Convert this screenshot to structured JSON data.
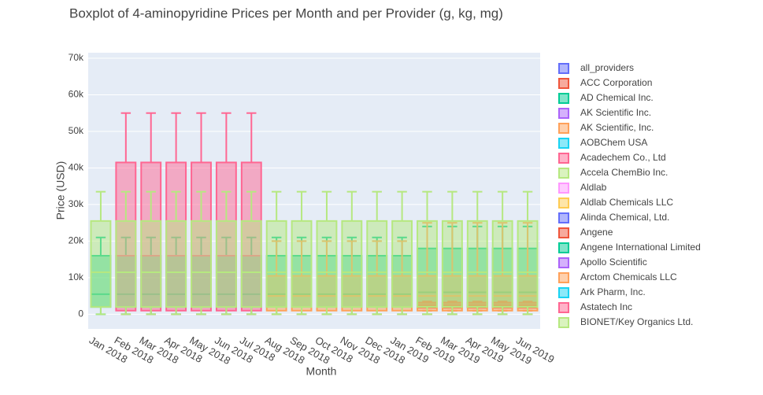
{
  "chart_data": {
    "type": "box",
    "title": "Boxplot of 4-aminopyridine Prices per Month and per Provider (g, kg, mg)",
    "x_label": "Month",
    "y_label": "Price (USD)",
    "categories": [
      "Jan 2018",
      "Feb 2018",
      "Mar 2018",
      "Apr 2018",
      "May 2018",
      "Jun 2018",
      "Jul 2018",
      "Aug 2018",
      "Sep 2018",
      "Oct 2018",
      "Nov 2018",
      "Dec 2018",
      "Jan 2019",
      "Feb 2019",
      "Mar 2019",
      "Apr 2019",
      "May 2019",
      "Jun 2019"
    ],
    "ylim": [
      -4000,
      71500
    ],
    "yticks": [
      0,
      {
        "value": 10000,
        "label": "10k"
      },
      {
        "value": 20000,
        "label": "20k"
      },
      {
        "value": 30000,
        "label": "30k"
      },
      {
        "value": 40000,
        "label": "40k"
      },
      {
        "value": 50000,
        "label": "50k"
      },
      {
        "value": 60000,
        "label": "60k"
      },
      {
        "value": 70000,
        "label": "70k"
      }
    ],
    "grid": true,
    "series": [
      {
        "name": "all_providers",
        "color": "#636EFA"
      },
      {
        "name": "ACC Corporation",
        "color": "#EF553B"
      },
      {
        "name": "AD Chemical Inc.",
        "color": "#00CC96",
        "lower": [
          0,
          0,
          0,
          0,
          0,
          0,
          0,
          0,
          0,
          0,
          0,
          0,
          0,
          0,
          0,
          0,
          0,
          0
        ],
        "q1": [
          2000,
          2000,
          2000,
          2000,
          2000,
          2000,
          2000,
          2000,
          2000,
          2000,
          2000,
          2000,
          2000,
          2000,
          2000,
          2000,
          2000,
          2000
        ],
        "median": [
          5500,
          5500,
          5500,
          5500,
          5500,
          5500,
          5500,
          5500,
          5500,
          5500,
          5500,
          5500,
          5500,
          6000,
          6000,
          6000,
          6000,
          6000
        ],
        "q3": [
          16000,
          16000,
          16000,
          16000,
          16000,
          16000,
          16000,
          16000,
          16000,
          16000,
          16000,
          16000,
          16000,
          18000,
          18000,
          18000,
          18000,
          18000
        ],
        "upper": [
          21000,
          21000,
          21000,
          21000,
          21000,
          21000,
          21000,
          21000,
          21000,
          21000,
          21000,
          21000,
          21000,
          24000,
          24000,
          24000,
          24000,
          24000
        ]
      },
      {
        "name": "AK Scientific Inc.",
        "color": "#AB63FA"
      },
      {
        "name": "AK Scientific, Inc.",
        "color": "#FFA15A"
      },
      {
        "name": "AOBChem USA",
        "color": "#19D3F3"
      },
      {
        "name": "Acadechem Co., Ltd",
        "color": "#FF6692",
        "lower": [
          null,
          0,
          0,
          0,
          0,
          0,
          0,
          null,
          null,
          null,
          null,
          null,
          null,
          null,
          null,
          null,
          null,
          null
        ],
        "q1": [
          null,
          1000,
          1000,
          1000,
          1000,
          1000,
          1000,
          null,
          null,
          null,
          null,
          null,
          null,
          null,
          null,
          null,
          null,
          null
        ],
        "median": [
          null,
          16000,
          16000,
          16000,
          16000,
          16000,
          16000,
          null,
          null,
          null,
          null,
          null,
          null,
          null,
          null,
          null,
          null,
          null
        ],
        "q3": [
          null,
          41500,
          41500,
          41500,
          41500,
          41500,
          41500,
          null,
          null,
          null,
          null,
          null,
          null,
          null,
          null,
          null,
          null,
          null
        ],
        "upper": [
          null,
          55000,
          55000,
          55000,
          55000,
          55000,
          55000,
          null,
          null,
          null,
          null,
          null,
          null,
          null,
          null,
          null,
          null,
          null
        ]
      },
      {
        "name": "Accela ChemBio Inc.",
        "color": "#B6E880"
      },
      {
        "name": "Aldlab",
        "color": "#FF97FF"
      },
      {
        "name": "Aldlab Chemicals LLC",
        "color": "#FECB52"
      },
      {
        "name": "Alinda Chemical, Ltd.",
        "color": "#636EFA"
      },
      {
        "name": "Angene",
        "color": "#EF553B",
        "lower": [
          null,
          null,
          null,
          null,
          null,
          null,
          null,
          null,
          null,
          null,
          null,
          null,
          null,
          1000,
          1000,
          1000,
          1000,
          1000
        ],
        "q1": [
          null,
          null,
          null,
          null,
          null,
          null,
          null,
          null,
          null,
          null,
          null,
          null,
          null,
          1800,
          1800,
          1800,
          1800,
          1800
        ],
        "median": [
          null,
          null,
          null,
          null,
          null,
          null,
          null,
          null,
          null,
          null,
          null,
          null,
          null,
          2500,
          2500,
          2500,
          2500,
          2500
        ],
        "q3": [
          null,
          null,
          null,
          null,
          null,
          null,
          null,
          null,
          null,
          null,
          null,
          null,
          null,
          3200,
          3200,
          3200,
          3200,
          3200
        ],
        "upper": [
          null,
          null,
          null,
          null,
          null,
          null,
          null,
          null,
          null,
          null,
          null,
          null,
          null,
          3500,
          3500,
          3500,
          3500,
          3500
        ]
      },
      {
        "name": "Angene International Limited",
        "color": "#00CC96"
      },
      {
        "name": "Apollo Scientific",
        "color": "#AB63FA"
      },
      {
        "name": "Arctom Chemicals LLC",
        "color": "#FFA15A",
        "lower": [
          null,
          null,
          null,
          null,
          null,
          null,
          null,
          0,
          0,
          0,
          0,
          0,
          0,
          0,
          0,
          0,
          0,
          0
        ],
        "q1": [
          null,
          null,
          null,
          null,
          null,
          null,
          null,
          1000,
          1000,
          1000,
          1000,
          1000,
          1000,
          1000,
          1000,
          1000,
          1000,
          1000
        ],
        "median": [
          null,
          null,
          null,
          null,
          null,
          null,
          null,
          5000,
          5000,
          5000,
          5000,
          5000,
          5000,
          5000,
          5000,
          5000,
          5000,
          5000
        ],
        "q3": [
          null,
          null,
          null,
          null,
          null,
          null,
          null,
          10500,
          10500,
          10500,
          10500,
          10500,
          10500,
          10500,
          10500,
          10500,
          10500,
          10500
        ],
        "upper": [
          null,
          null,
          null,
          null,
          null,
          null,
          null,
          20000,
          20000,
          20000,
          20000,
          20000,
          20000,
          25000,
          25000,
          25000,
          25000,
          25000
        ]
      },
      {
        "name": "Ark Pharm, Inc.",
        "color": "#19D3F3"
      },
      {
        "name": "Astatech Inc",
        "color": "#FF6692"
      },
      {
        "name": "BIONET/Key Organics Ltd.",
        "color": "#B6E880",
        "lower": [
          0,
          0,
          0,
          0,
          0,
          0,
          0,
          0,
          0,
          0,
          0,
          0,
          0,
          0,
          0,
          0,
          0,
          0
        ],
        "q1": [
          2000,
          2000,
          2000,
          2000,
          2000,
          2000,
          2000,
          2000,
          2000,
          2000,
          2000,
          2000,
          2000,
          2000,
          2000,
          2000,
          2000,
          2000
        ],
        "median": [
          11500,
          11500,
          11500,
          11500,
          11500,
          11500,
          11500,
          11500,
          11500,
          11500,
          11500,
          11500,
          11500,
          11500,
          11500,
          11500,
          11500,
          11500
        ],
        "q3": [
          25500,
          25500,
          25500,
          25500,
          25500,
          25500,
          25500,
          25500,
          25500,
          25500,
          25500,
          25500,
          25500,
          25500,
          25500,
          25500,
          25500,
          25500
        ],
        "upper": [
          33500,
          33500,
          33500,
          33500,
          33500,
          33500,
          33500,
          33500,
          33500,
          33500,
          33500,
          33500,
          33500,
          33500,
          33500,
          33500,
          33500,
          33500
        ]
      }
    ]
  }
}
